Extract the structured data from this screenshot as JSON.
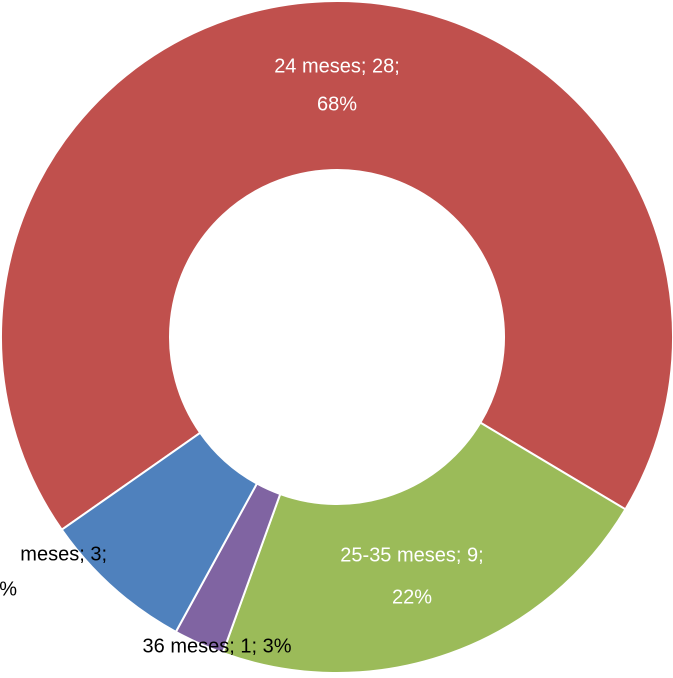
{
  "chart_data": {
    "type": "pie",
    "values": [
      28,
      9,
      1,
      3
    ],
    "colors": [
      "#c0504d",
      "#9bbb59",
      "#8064a2",
      "#4f81bd"
    ],
    "data_labels": [
      [
        "24 meses; 28;",
        "68%"
      ],
      [
        "25-35 meses; 9;",
        "22%"
      ],
      [
        "36 meses; 1; 3%"
      ],
      [
        "meses; 3;",
        "%"
      ]
    ],
    "donut": true
  }
}
